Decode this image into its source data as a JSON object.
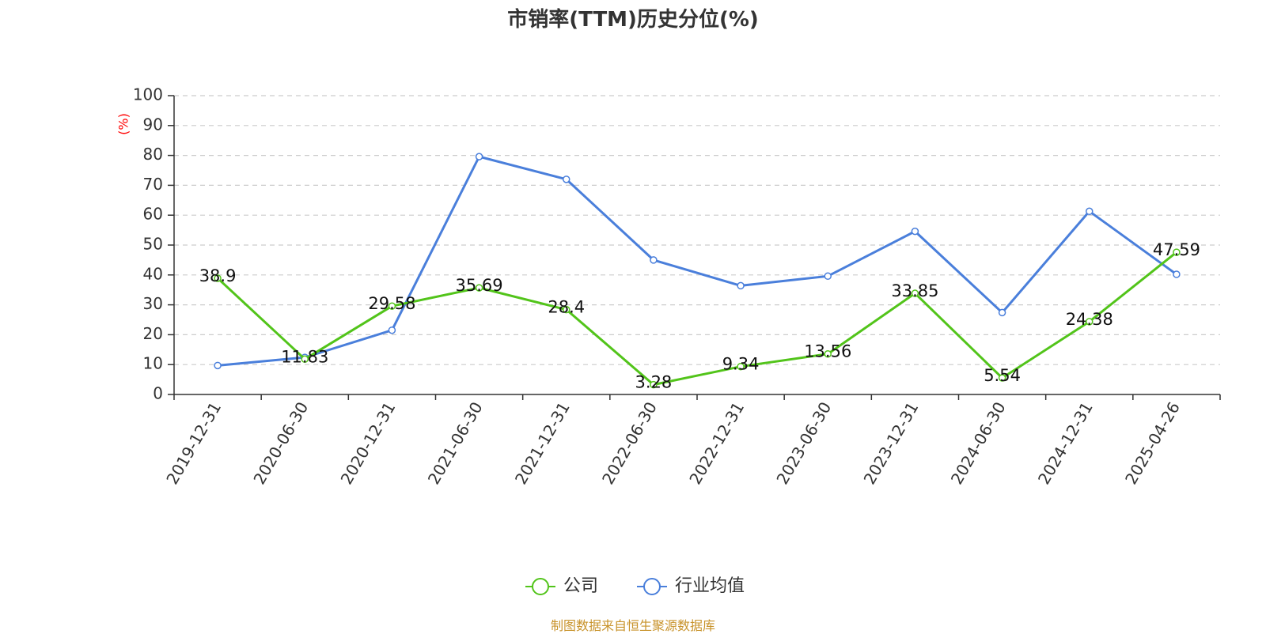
{
  "chart_data": {
    "type": "line",
    "title": "市销率(TTM)历史分位(%)",
    "ylabel": "(%)",
    "ylim": [
      0,
      100
    ],
    "yticks": [
      0,
      10,
      20,
      30,
      40,
      50,
      60,
      70,
      80,
      90,
      100
    ],
    "grid": true,
    "legend_position": "bottom-center",
    "categories": [
      "2019-12-31",
      "2020-06-30",
      "2020-12-31",
      "2021-06-30",
      "2021-12-31",
      "2022-06-30",
      "2022-12-31",
      "2023-06-30",
      "2023-12-31",
      "2024-06-30",
      "2024-12-31",
      "2025-04-26"
    ],
    "series": [
      {
        "name": "公司",
        "color": "#52c41a",
        "values": [
          38.9,
          11.83,
          29.58,
          35.69,
          28.4,
          3.28,
          9.34,
          13.56,
          33.85,
          5.54,
          24.38,
          47.59
        ],
        "labels": [
          "38.9",
          "11.83",
          "29.58",
          "35.69",
          "28.4",
          "3.28",
          "9.34",
          "13.56",
          "33.85",
          "5.54",
          "24.38",
          "47.59"
        ]
      },
      {
        "name": "行业均值",
        "color": "#4a7fdb",
        "values": [
          9.7,
          12.4,
          21.5,
          79.6,
          72.0,
          45.0,
          36.4,
          39.6,
          54.6,
          27.4,
          61.3,
          40.2
        ]
      }
    ]
  },
  "footer": {
    "source": "制图数据来自恒生聚源数据库"
  }
}
